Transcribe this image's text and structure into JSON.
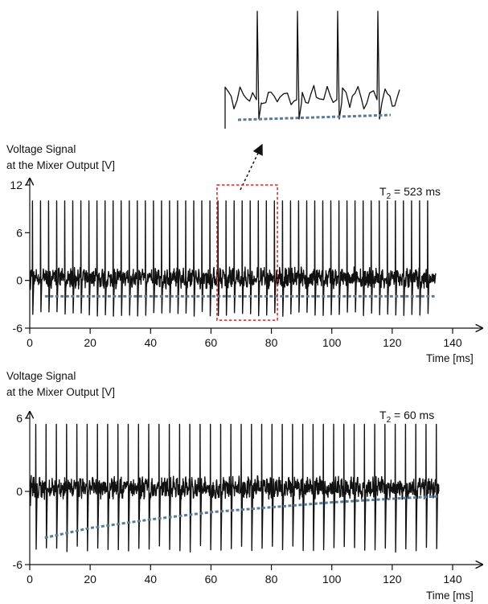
{
  "chart_data": [
    {
      "type": "line",
      "name": "top-panel",
      "ylabel_line1": "Voltage Signal",
      "ylabel_line2": "at the Mixer Output [V]",
      "xlabel": "Time [ms]",
      "xlim": [
        0,
        140
      ],
      "ylim": [
        -6,
        12
      ],
      "xticks": [
        0,
        20,
        40,
        60,
        80,
        100,
        120,
        140
      ],
      "yticks": [
        -6,
        0,
        6,
        12
      ],
      "annotation_main": "T",
      "annotation_sub": "2",
      "annotation_rest": " = 523 ms",
      "signal": {
        "pulse_period_ms": 2.67,
        "pulse_start_ms": 0.9,
        "pulse_count": 50,
        "pulse_peak_v": 10.0,
        "pulse_trough_v": -4.5,
        "noise_level_v": 0.3,
        "noise_amplitude_v": 1.3,
        "end_ms": 134.5
      },
      "envelope": {
        "x": [
          5,
          134
        ],
        "y": [
          -2.0,
          -2.0
        ]
      },
      "highlight_box": {
        "x": [
          62,
          82
        ],
        "y": [
          -5.0,
          12.0
        ]
      }
    },
    {
      "type": "line",
      "name": "bottom-panel",
      "ylabel_line1": "Voltage Signal",
      "ylabel_line2": "at the Mixer Output [V]",
      "xlabel": "Time [ms]",
      "xlim": [
        0,
        140
      ],
      "ylim": [
        -6,
        6
      ],
      "xticks": [
        0,
        20,
        40,
        60,
        80,
        100,
        120,
        140
      ],
      "yticks": [
        -6,
        0,
        6
      ],
      "annotation_main": "T",
      "annotation_sub": "2",
      "annotation_rest": " = 60 ms",
      "signal": {
        "pulse_period_ms": 3.4,
        "pulse_start_ms": 2.0,
        "pulse_count": 40,
        "pulse_peak_v": 5.5,
        "pulse_trough_v": -5.0,
        "noise_level_v": 0.3,
        "noise_amplitude_v": 0.9,
        "end_ms": 135.5
      },
      "envelope": {
        "x": [
          5,
          20,
          40,
          60,
          80,
          100,
          120,
          135
        ],
        "y": [
          -3.8,
          -3.0,
          -2.3,
          -1.7,
          -1.3,
          -0.9,
          -0.6,
          -0.4
        ]
      }
    }
  ],
  "inset": {
    "description_pulses": 4,
    "envelope_y_start": 0.6,
    "envelope_y_end": 0.0
  }
}
